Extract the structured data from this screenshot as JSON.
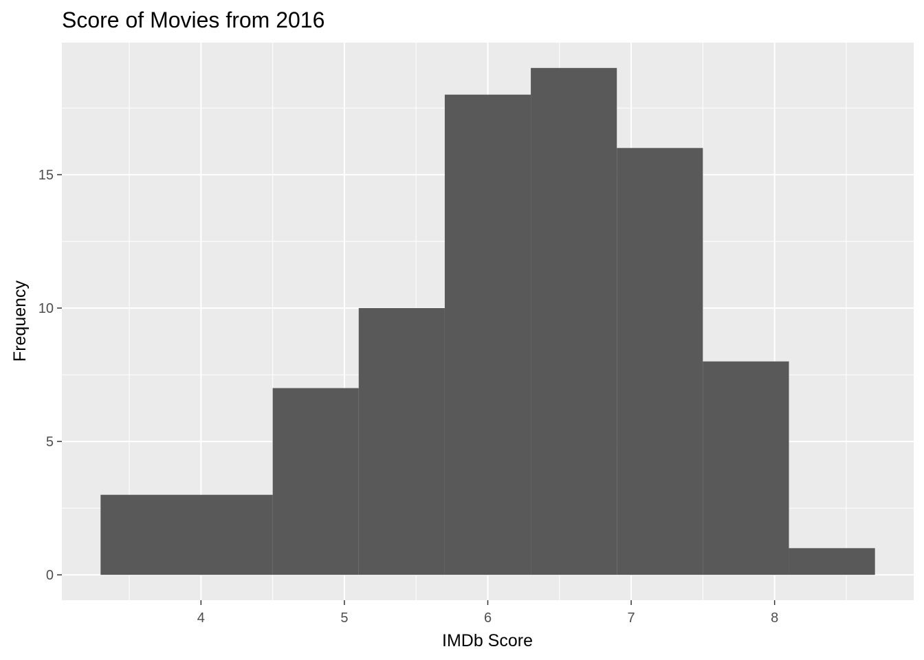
{
  "chart_data": {
    "type": "bar",
    "subtype": "histogram",
    "title": "Score of Movies from 2016",
    "xlabel": "IMDb Score",
    "ylabel": "Frequency",
    "bins": [
      {
        "x_start": 3.3,
        "x_end": 4.5,
        "count": 3
      },
      {
        "x_start": 4.5,
        "x_end": 5.1,
        "count": 7
      },
      {
        "x_start": 5.1,
        "x_end": 5.7,
        "count": 10
      },
      {
        "x_start": 5.7,
        "x_end": 6.3,
        "count": 18
      },
      {
        "x_start": 6.3,
        "x_end": 6.9,
        "count": 19
      },
      {
        "x_start": 6.9,
        "x_end": 7.5,
        "count": 16
      },
      {
        "x_start": 7.5,
        "x_end": 8.1,
        "count": 8
      },
      {
        "x_start": 8.1,
        "x_end": 8.7,
        "count": 1
      }
    ],
    "xlim": [
      3.03,
      8.97
    ],
    "ylim": [
      -0.95,
      19.95
    ],
    "x_ticks": [
      4,
      5,
      6,
      7,
      8
    ],
    "x_tick_labels": [
      "4",
      "5",
      "6",
      "7",
      "8"
    ],
    "x_minor_ticks": [
      3.5,
      4.5,
      5.5,
      6.5,
      7.5,
      8.5
    ],
    "y_ticks": [
      0,
      5,
      10,
      15
    ],
    "y_tick_labels": [
      "0",
      "5",
      "10",
      "15"
    ],
    "y_minor_ticks": [
      2.5,
      7.5,
      12.5,
      17.5
    ],
    "grid": true,
    "legend": "none",
    "colors": {
      "panel_background": "#EBEBEB",
      "grid": "#FFFFFF",
      "bar_fill": "#595959",
      "tick_label": "#4D4D4D",
      "tick_mark": "#333333",
      "text": "#000000"
    }
  }
}
